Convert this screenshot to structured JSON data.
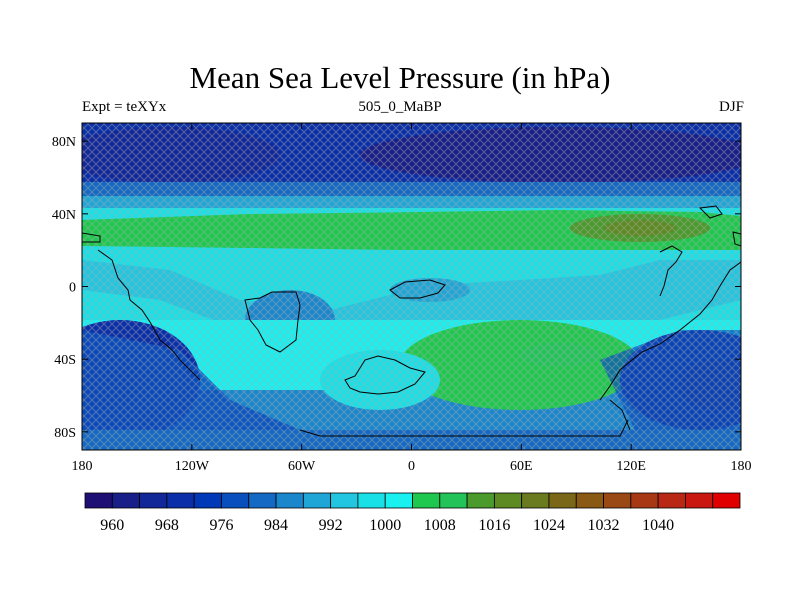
{
  "title": "Mean Sea Level Pressure (in hPa)",
  "subtitle_left": "Expt = teXYx",
  "subtitle_center": "505_0_MaBP",
  "subtitle_right": "DJF",
  "map": {
    "lat_ticks": [
      "80N",
      "40N",
      "0",
      "40S",
      "80S"
    ],
    "lon_ticks": [
      "180",
      "120W",
      "60W",
      "0",
      "60E",
      "120E",
      "180"
    ]
  },
  "colorbar": {
    "labels": [
      "960",
      "968",
      "976",
      "984",
      "992",
      "1000",
      "1008",
      "1016",
      "1024",
      "1032",
      "1040"
    ],
    "colors": [
      "#1e0f74",
      "#191f88",
      "#122798",
      "#0a2fa8",
      "#0039b8",
      "#0a4fbe",
      "#1369c3",
      "#1a86cc",
      "#20a6d6",
      "#22c6e0",
      "#19e0e6",
      "#19f0f0",
      "#1ec84e",
      "#22c45a",
      "#4a9a2c",
      "#5e8a24",
      "#6a7a1e",
      "#7a6818",
      "#8a5a14",
      "#9a4814",
      "#a83814",
      "#b82814",
      "#c81810",
      "#e00000"
    ]
  }
}
